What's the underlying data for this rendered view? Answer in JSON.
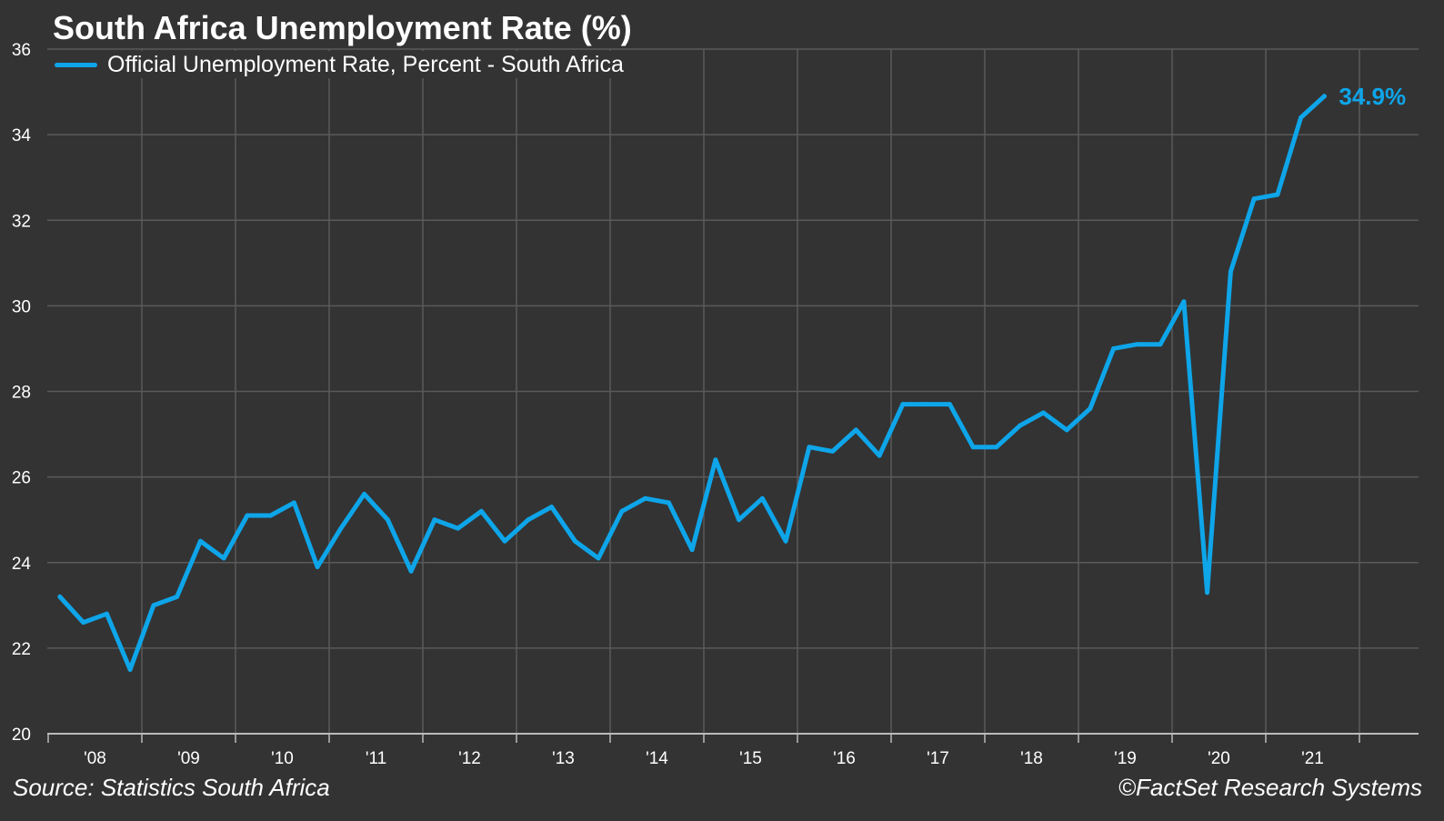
{
  "colors": {
    "background": "#333333",
    "grid": "#5a5a5a",
    "axis": "#bbbbbb",
    "text": "#ffffff",
    "series": "#0ea5e9"
  },
  "footer": {
    "source": "Source: Statistics South Africa",
    "copyright": "©FactSet Research Systems"
  },
  "chart_data": {
    "type": "line",
    "title": "South Africa Unemployment Rate (%)",
    "xlabel": "",
    "ylabel": "",
    "ylim": [
      20,
      36
    ],
    "yticks": [
      20,
      22,
      24,
      26,
      28,
      30,
      32,
      34,
      36
    ],
    "xtick_labels": [
      "'08",
      "'09",
      "'10",
      "'11",
      "'12",
      "'13",
      "'14",
      "'15",
      "'16",
      "'17",
      "'18",
      "'19",
      "'20",
      "'21"
    ],
    "grid": true,
    "legend_position": "top-left",
    "end_label": "34.9%",
    "series": [
      {
        "name": "Official Unemployment Rate, Percent - South Africa",
        "color": "#0ea5e9",
        "x": [
          "2008 Q1",
          "2008 Q2",
          "2008 Q3",
          "2008 Q4",
          "2009 Q1",
          "2009 Q2",
          "2009 Q3",
          "2009 Q4",
          "2010 Q1",
          "2010 Q2",
          "2010 Q3",
          "2010 Q4",
          "2011 Q1",
          "2011 Q2",
          "2011 Q3",
          "2011 Q4",
          "2012 Q1",
          "2012 Q2",
          "2012 Q3",
          "2012 Q4",
          "2013 Q1",
          "2013 Q2",
          "2013 Q3",
          "2013 Q4",
          "2014 Q1",
          "2014 Q2",
          "2014 Q3",
          "2014 Q4",
          "2015 Q1",
          "2015 Q2",
          "2015 Q3",
          "2015 Q4",
          "2016 Q1",
          "2016 Q2",
          "2016 Q3",
          "2016 Q4",
          "2017 Q1",
          "2017 Q2",
          "2017 Q3",
          "2017 Q4",
          "2018 Q1",
          "2018 Q2",
          "2018 Q3",
          "2018 Q4",
          "2019 Q1",
          "2019 Q2",
          "2019 Q3",
          "2019 Q4",
          "2020 Q1",
          "2020 Q2",
          "2020 Q3",
          "2020 Q4",
          "2021 Q1",
          "2021 Q2",
          "2021 Q3"
        ],
        "values": [
          23.2,
          22.6,
          22.8,
          21.5,
          23.0,
          23.2,
          24.5,
          24.1,
          25.1,
          25.1,
          25.4,
          23.9,
          24.8,
          25.6,
          25.0,
          23.8,
          25.0,
          24.8,
          25.2,
          24.5,
          25.0,
          25.3,
          24.5,
          24.1,
          25.2,
          25.5,
          25.4,
          24.3,
          26.4,
          25.0,
          25.5,
          24.5,
          26.7,
          26.6,
          27.1,
          26.5,
          27.7,
          27.7,
          27.7,
          26.7,
          26.7,
          27.2,
          27.5,
          27.1,
          27.6,
          29.0,
          29.1,
          29.1,
          30.1,
          23.3,
          30.8,
          32.5,
          32.6,
          34.4,
          34.9
        ]
      }
    ]
  }
}
